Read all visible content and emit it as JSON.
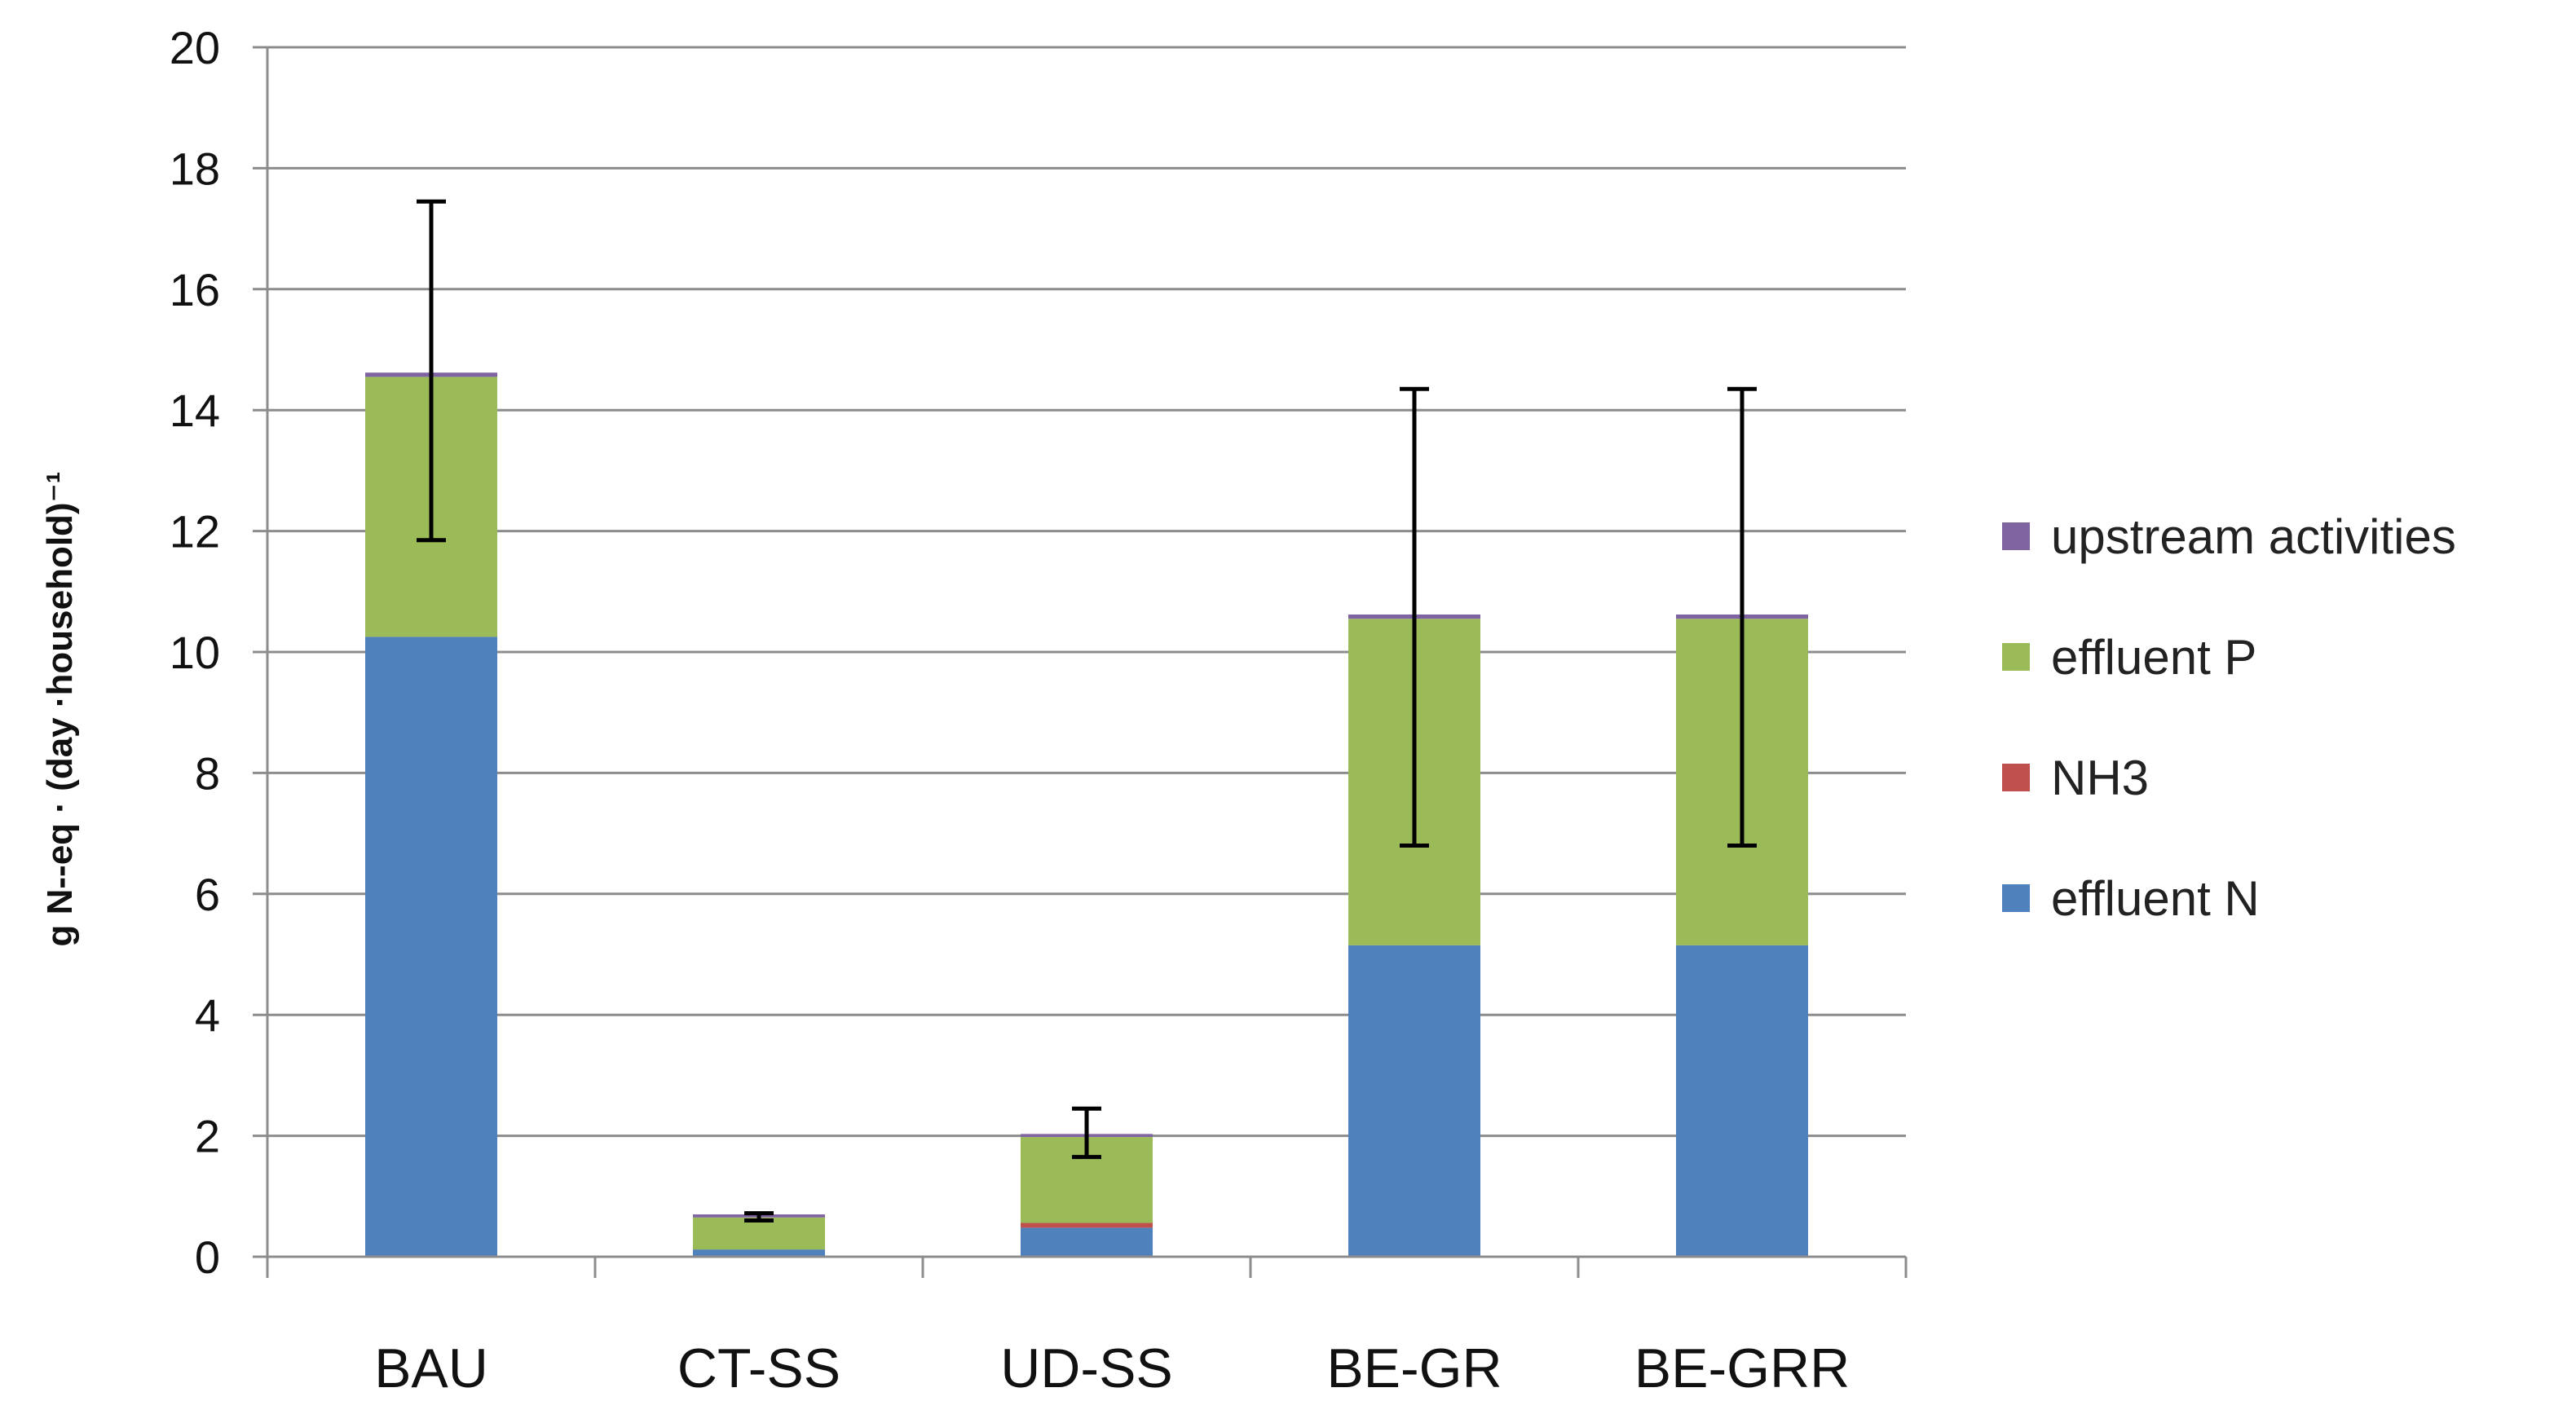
{
  "chart_data": {
    "type": "bar",
    "stacked": true,
    "title": "",
    "xlabel": "",
    "ylabel": "g N--eq · (day ·household)⁻¹",
    "ylim": [
      0,
      20
    ],
    "yticks": [
      0,
      2,
      4,
      6,
      8,
      10,
      12,
      14,
      16,
      18,
      20
    ],
    "grid": true,
    "legend_position": "right",
    "categories": [
      "BAU",
      "CT-SS",
      "UD-SS",
      "BE-GR",
      "BE-GRR"
    ],
    "series": [
      {
        "name": "effluent N",
        "color": "#4F81BD",
        "values": [
          10.25,
          0.12,
          0.48,
          5.15,
          5.15
        ]
      },
      {
        "name": "NH3",
        "color": "#C0504D",
        "values": [
          0.0,
          0.0,
          0.08,
          0.0,
          0.0
        ]
      },
      {
        "name": "effluent P",
        "color": "#9BBB59",
        "values": [
          4.3,
          0.53,
          1.42,
          5.4,
          5.4
        ]
      },
      {
        "name": "upstream activities",
        "color": "#8064A2",
        "values": [
          0.07,
          0.05,
          0.05,
          0.07,
          0.07
        ]
      }
    ],
    "error_bars": [
      {
        "low": 11.85,
        "high": 17.45
      },
      {
        "low": 0.6,
        "high": 0.72
      },
      {
        "low": 1.65,
        "high": 2.45
      },
      {
        "low": 6.8,
        "high": 14.35
      },
      {
        "low": 6.8,
        "high": 14.35
      }
    ]
  }
}
